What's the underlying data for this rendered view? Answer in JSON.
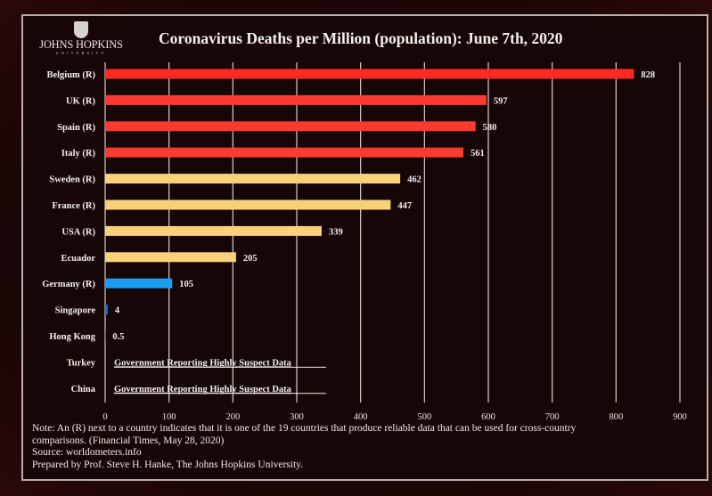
{
  "logo": {
    "name": "JOHNS HOPKINS",
    "subtitle": "UNIVERSITY",
    "icon": "university-shield-icon"
  },
  "chart_data": {
    "type": "bar",
    "orientation": "horizontal",
    "title": "Coronavirus Deaths per Million (population): June 7th, 2020",
    "xlabel": "",
    "ylabel": "",
    "xlim": [
      0,
      900
    ],
    "xticks": [
      0,
      100,
      200,
      300,
      400,
      500,
      600,
      700,
      800,
      900
    ],
    "grid": "vertical",
    "categories": [
      "Belgium (R)",
      "UK (R)",
      "Spain (R)",
      "Italy (R)",
      "Sweden (R)",
      "France (R)",
      "USA (R)",
      "Ecuador",
      "Germany (R)",
      "Singapore",
      "Hong Kong",
      "Turkey",
      "China"
    ],
    "values": [
      828,
      597,
      580,
      561,
      462,
      447,
      339,
      205,
      105,
      4,
      0.5,
      null,
      null
    ],
    "value_labels": [
      "828",
      "597",
      "580",
      "561",
      "462",
      "447",
      "339",
      "205",
      "105",
      "4",
      "0.5",
      "Government Reporting Highly Suspect Data",
      "Government Reporting Highly Suspect Data"
    ],
    "bar_colors": [
      "#ff2a24",
      "#ff3a30",
      "#ff3a30",
      "#ff3a30",
      "#f7d27a",
      "#f7d27a",
      "#f7d27a",
      "#f7d27a",
      "#1e9cf0",
      "#1e6fe0",
      "#1e6fe0",
      null,
      null
    ],
    "annotations": [
      "Government Reporting Highly Suspect Data"
    ]
  },
  "notes": [
    "Note: An (R) next to a country indicates that it is one of the 19 countries that produce reliable data that can be used for cross-country",
    "comparisons. (Financial Times, May 28, 2020)",
    "Source: worldometers.info",
    "Prepared by Prof. Steve H. Hanke, The Johns Hopkins University."
  ]
}
